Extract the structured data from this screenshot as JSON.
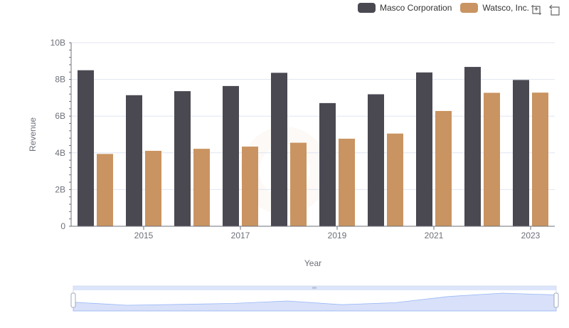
{
  "legend": {
    "items": [
      {
        "label": "Masco Corporation",
        "color": "#4a4952"
      },
      {
        "label": "Watsco, Inc.",
        "color": "#c99461"
      }
    ]
  },
  "toolbox": {
    "icons": [
      "zoom-icon",
      "zoom-reset-icon"
    ]
  },
  "chart_data": {
    "type": "bar",
    "categories": [
      "2014",
      "2015",
      "2016",
      "2017",
      "2018",
      "2019",
      "2020",
      "2021",
      "2022",
      "2023"
    ],
    "x_tick_labels": [
      "2015",
      "2017",
      "2019",
      "2021",
      "2023"
    ],
    "series": [
      {
        "name": "Masco Corporation",
        "color": "#4a4952",
        "values": [
          8.5,
          7.14,
          7.36,
          7.64,
          8.36,
          6.71,
          7.19,
          8.38,
          8.68,
          7.97
        ]
      },
      {
        "name": "Watsco, Inc.",
        "color": "#c99461",
        "values": [
          3.94,
          4.11,
          4.22,
          4.34,
          4.55,
          4.77,
          5.05,
          6.28,
          7.27,
          7.28
        ]
      }
    ],
    "xlabel": "Year",
    "ylabel": "Revenue",
    "ylim": [
      0,
      10
    ],
    "y_tick_labels": [
      "0",
      "2B",
      "4B",
      "6B",
      "8B",
      "10B"
    ],
    "grid": true,
    "legend_position": "top-right"
  }
}
